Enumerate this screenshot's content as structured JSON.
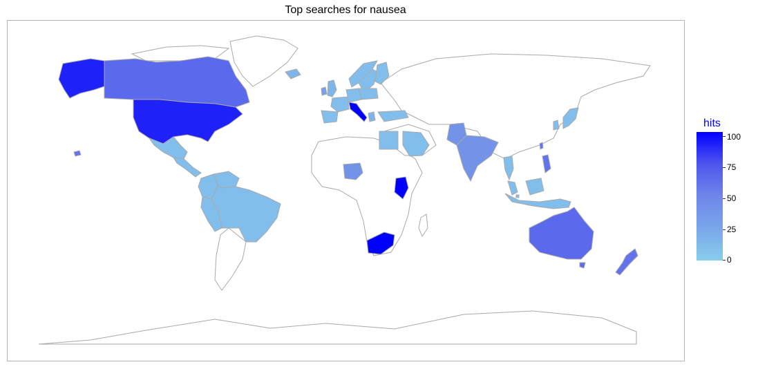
{
  "title": "Top searches for nausea",
  "legend": {
    "title": "hits",
    "ticks": [
      "100",
      "75",
      "50",
      "25",
      "0"
    ],
    "low_color": "#87ceeb",
    "high_color": "#0000ff"
  },
  "colors": {
    "no_data": "#ffffff",
    "border": "#a9a9a9",
    "panel_border": "#b3b3b3"
  },
  "chart_data": {
    "type": "choropleth",
    "metric": "hits",
    "scale": [
      0,
      100
    ],
    "regions": [
      {
        "name": "Alaska (USA)",
        "value": 90
      },
      {
        "name": "Canada",
        "value": 65
      },
      {
        "name": "United States",
        "value": 90
      },
      {
        "name": "Mexico",
        "value": 10
      },
      {
        "name": "Central America",
        "value": 10
      },
      {
        "name": "Colombia",
        "value": 10
      },
      {
        "name": "Venezuela",
        "value": 10
      },
      {
        "name": "Brazil",
        "value": 10
      },
      {
        "name": "Peru",
        "value": 10
      },
      {
        "name": "Ireland",
        "value": 30
      },
      {
        "name": "United Kingdom",
        "value": 15
      },
      {
        "name": "Norway",
        "value": 10
      },
      {
        "name": "Sweden",
        "value": 10
      },
      {
        "name": "Finland",
        "value": 10
      },
      {
        "name": "Iceland",
        "value": 15
      },
      {
        "name": "Spain",
        "value": 10
      },
      {
        "name": "France",
        "value": 10
      },
      {
        "name": "Germany",
        "value": 10
      },
      {
        "name": "Poland",
        "value": 10
      },
      {
        "name": "Italy",
        "value": 100
      },
      {
        "name": "Greece",
        "value": 15
      },
      {
        "name": "Turkey",
        "value": 10
      },
      {
        "name": "Egypt",
        "value": 10
      },
      {
        "name": "Saudi Arabia",
        "value": 10
      },
      {
        "name": "Nigeria",
        "value": 40
      },
      {
        "name": "Kenya",
        "value": 100
      },
      {
        "name": "South Africa",
        "value": 100
      },
      {
        "name": "Pakistan",
        "value": 40
      },
      {
        "name": "India",
        "value": 40
      },
      {
        "name": "Thailand",
        "value": 10
      },
      {
        "name": "Malaysia",
        "value": 10
      },
      {
        "name": "Singapore",
        "value": 10
      },
      {
        "name": "Indonesia",
        "value": 10
      },
      {
        "name": "Philippines",
        "value": 60
      },
      {
        "name": "Taiwan",
        "value": 60
      },
      {
        "name": "South Korea",
        "value": 10
      },
      {
        "name": "Japan",
        "value": 10
      },
      {
        "name": "Australia",
        "value": 65
      },
      {
        "name": "New Zealand",
        "value": 60
      },
      {
        "name": "Hawaii (USA)",
        "value": 60
      }
    ]
  }
}
